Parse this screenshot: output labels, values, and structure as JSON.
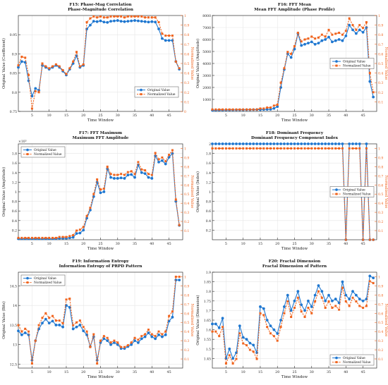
{
  "chart_data": [
    {
      "type": "line",
      "title": "F15: Phase-Mag Correlation",
      "subtitle": "Phase-Magnitude Correlation",
      "xlabel": "Time Window",
      "ylabel": "Original Value (Coefficient)",
      "y2label": "Normalized Value",
      "xlim": [
        1,
        49
      ],
      "ylim": [
        0.75,
        1.0
      ],
      "y2lim": [
        0,
        1
      ],
      "xticks": [
        5,
        10,
        15,
        20,
        25,
        30,
        35,
        40,
        45
      ],
      "yticks": [
        0.75,
        0.8,
        0.85,
        0.9,
        0.95
      ],
      "ytick_labels": [
        "0.75",
        "0.8",
        "0.85",
        "0.9",
        "0.95"
      ],
      "y2ticks": [
        0,
        0.1,
        0.2,
        0.3,
        0.4,
        0.5,
        0.6,
        0.7,
        0.8,
        0.9,
        1
      ],
      "legend_position": "lower-right",
      "grid": true,
      "series": [
        {
          "name": "Original Value",
          "axis": "left",
          "values": [
            0.865,
            0.88,
            0.878,
            0.83,
            0.79,
            0.81,
            0.805,
            0.87,
            0.865,
            0.86,
            0.865,
            0.87,
            0.865,
            0.855,
            0.845,
            0.86,
            0.875,
            0.895,
            0.865,
            0.87,
            0.965,
            0.975,
            0.985,
            0.984,
            0.986,
            0.983,
            0.982,
            0.985,
            0.986,
            0.987,
            0.985,
            0.984,
            0.985,
            0.986,
            0.987,
            0.986,
            0.985,
            0.984,
            0.983,
            0.984,
            0.983,
            0.965,
            0.94,
            0.935,
            0.935,
            0.935,
            0.88,
            0.86
          ]
        },
        {
          "name": "Normalized Value",
          "axis": "right",
          "values": [
            0.48,
            0.57,
            0.56,
            0.38,
            0.03,
            0.21,
            0.2,
            0.5,
            0.47,
            0.45,
            0.47,
            0.49,
            0.47,
            0.43,
            0.39,
            0.45,
            0.52,
            0.62,
            0.47,
            0.49,
            0.93,
            0.97,
            0.99,
            0.98,
            0.99,
            0.98,
            0.98,
            0.99,
            0.99,
            0.99,
            0.99,
            0.98,
            0.99,
            0.99,
            0.99,
            0.99,
            0.99,
            0.98,
            0.98,
            0.98,
            0.98,
            0.93,
            0.81,
            0.79,
            0.79,
            0.79,
            0.52,
            0.45
          ]
        }
      ]
    },
    {
      "type": "line",
      "title": "F16: FFT Mean",
      "subtitle": "Mean FFT Amplitude (Phase Profile)",
      "xlabel": "Time Window",
      "ylabel": "Original Value (Amplitude)",
      "y2label": "Normalized Value",
      "xlim": [
        1,
        49
      ],
      "ylim": [
        0,
        8000
      ],
      "y2lim": [
        0,
        1
      ],
      "xticks": [
        5,
        10,
        15,
        20,
        25,
        30,
        35,
        40,
        45
      ],
      "yticks": [
        1000,
        2000,
        3000,
        4000,
        5000,
        6000,
        7000,
        8000
      ],
      "ytick_labels": [
        "1000",
        "2000",
        "3000",
        "4000",
        "5000",
        "6000",
        "7000",
        "8000"
      ],
      "y2ticks": [
        0.1,
        0.2,
        0.3,
        0.4,
        0.5,
        0.6,
        0.7,
        0.8,
        0.9,
        1
      ],
      "legend_position": "center-right",
      "grid": true,
      "series": [
        {
          "name": "Original Value",
          "axis": "left",
          "values": [
            90,
            100,
            110,
            110,
            115,
            120,
            125,
            130,
            130,
            135,
            140,
            140,
            145,
            150,
            150,
            160,
            170,
            180,
            250,
            400,
            2000,
            3500,
            4800,
            4500,
            5200,
            6500,
            5500,
            5600,
            5700,
            5800,
            5600,
            5700,
            5900,
            6000,
            6200,
            5800,
            5900,
            6000,
            5900,
            6300,
            7200,
            6800,
            6500,
            6800,
            6600,
            7000,
            2500,
            1200
          ]
        },
        {
          "name": "Normalized Value",
          "axis": "right",
          "values": [
            0.02,
            0.02,
            0.02,
            0.02,
            0.02,
            0.02,
            0.02,
            0.02,
            0.02,
            0.02,
            0.02,
            0.02,
            0.02,
            0.02,
            0.03,
            0.03,
            0.04,
            0.04,
            0.06,
            0.07,
            0.3,
            0.45,
            0.62,
            0.6,
            0.68,
            0.82,
            0.73,
            0.75,
            0.76,
            0.78,
            0.76,
            0.77,
            0.8,
            0.78,
            0.85,
            0.8,
            0.81,
            0.82,
            0.8,
            0.84,
            0.97,
            0.9,
            0.85,
            0.9,
            0.87,
            0.93,
            0.4,
            0.2
          ]
        }
      ]
    },
    {
      "type": "line",
      "title": "F17: FFT Maximum",
      "subtitle": "Maximum FFT Amplitude",
      "xlabel": "Time Window",
      "ylabel": "Original Value (Amplitude)",
      "y2label": "Normalized Value",
      "exponent_label": "×10⁵",
      "xlim": [
        1,
        49
      ],
      "ylim": [
        0,
        2.0
      ],
      "y2lim": [
        0,
        1.05
      ],
      "xticks": [
        5,
        10,
        15,
        20,
        25,
        30,
        35,
        40,
        45
      ],
      "yticks": [
        0.2,
        0.4,
        0.6,
        0.8,
        1.0,
        1.2,
        1.4,
        1.6,
        1.8
      ],
      "ytick_labels": [
        "0.2",
        "0.4",
        "0.6",
        "0.8",
        "1",
        "1.2",
        "1.4",
        "1.6",
        "1.8"
      ],
      "y2ticks": [
        0.1,
        0.2,
        0.3,
        0.4,
        0.5,
        0.6,
        0.7,
        0.8,
        0.9,
        1
      ],
      "legend_position": "top-left",
      "grid": true,
      "series": [
        {
          "name": "Original Value",
          "axis": "left",
          "values": [
            0.02,
            0.02,
            0.02,
            0.02,
            0.02,
            0.02,
            0.02,
            0.02,
            0.02,
            0.02,
            0.02,
            0.02,
            0.03,
            0.03,
            0.03,
            0.04,
            0.05,
            0.13,
            0.14,
            0.2,
            0.45,
            0.62,
            0.9,
            1.2,
            0.98,
            1.0,
            1.48,
            1.3,
            1.28,
            1.28,
            1.29,
            1.28,
            1.35,
            1.36,
            1.3,
            1.56,
            1.4,
            1.38,
            1.3,
            1.28,
            1.75,
            1.62,
            1.65,
            1.58,
            1.72,
            1.8,
            0.8,
            0.3
          ]
        },
        {
          "name": "Normalized Value",
          "axis": "right",
          "values": [
            0.02,
            0.02,
            0.02,
            0.02,
            0.02,
            0.02,
            0.02,
            0.02,
            0.02,
            0.02,
            0.02,
            0.02,
            0.03,
            0.03,
            0.03,
            0.04,
            0.05,
            0.1,
            0.11,
            0.14,
            0.26,
            0.35,
            0.5,
            0.66,
            0.55,
            0.56,
            0.8,
            0.72,
            0.71,
            0.71,
            0.72,
            0.71,
            0.74,
            0.75,
            0.72,
            0.85,
            0.77,
            0.76,
            0.72,
            0.71,
            0.95,
            0.88,
            0.9,
            0.86,
            0.93,
            0.98,
            0.44,
            0.16
          ]
        }
      ]
    },
    {
      "type": "line",
      "title": "F18: Dominant Frequency",
      "subtitle": "Dominant Frequency Component Index",
      "xlabel": "Time Window",
      "ylabel": "Original Value (Index)",
      "y2label": "Normalized Value",
      "xlim": [
        1,
        49
      ],
      "ylim": [
        0,
        2
      ],
      "y2lim": [
        0,
        1.05
      ],
      "xticks": [
        5,
        10,
        15,
        20,
        25,
        30,
        35,
        40,
        45
      ],
      "yticks": [
        0.2,
        0.4,
        0.6,
        0.8,
        1.0,
        1.2,
        1.4,
        1.6,
        1.8,
        2.0
      ],
      "ytick_labels": [
        "0.2",
        "0.4",
        "0.6",
        "0.8",
        "1",
        "1.2",
        "1.4",
        "1.6",
        "1.8",
        "2"
      ],
      "y2ticks": [
        0.1,
        0.2,
        0.3,
        0.4,
        0.5,
        0.6,
        0.7,
        0.8,
        0.9,
        1
      ],
      "legend_position": "center-right",
      "grid": true,
      "series": [
        {
          "name": "Original Value",
          "axis": "left",
          "values": [
            2,
            2,
            2,
            2,
            2,
            2,
            2,
            2,
            2,
            2,
            2,
            2,
            2,
            2,
            2,
            2,
            2,
            2,
            2,
            2,
            2,
            2,
            2,
            2,
            2,
            2,
            2,
            2,
            2,
            2,
            2,
            2,
            2,
            2,
            2,
            2,
            2,
            2,
            2,
            0,
            2,
            2,
            2,
            2,
            0,
            2,
            0,
            0
          ]
        },
        {
          "name": "Normalized Value",
          "axis": "right",
          "values": [
            1,
            1,
            1,
            1,
            1,
            1,
            1,
            1,
            1,
            1,
            1,
            1,
            1,
            1,
            1,
            1,
            1,
            1,
            1,
            1,
            1,
            1,
            1,
            1,
            1,
            1,
            1,
            1,
            1,
            1,
            1,
            1,
            1,
            1,
            1,
            1,
            1,
            1,
            1,
            0,
            1,
            1,
            1,
            1,
            0,
            1,
            0,
            0
          ]
        }
      ]
    },
    {
      "type": "line",
      "title": "F19: Information Entropy",
      "subtitle": "Information Entropy of PRPD Pattern",
      "xlabel": "Time Window",
      "ylabel": "Original Value (Bits)",
      "y2label": "Normalized Value",
      "xlim": [
        1,
        49
      ],
      "ylim": [
        12.4,
        14.85
      ],
      "y2lim": [
        0,
        1.05
      ],
      "xticks": [
        5,
        10,
        15,
        20,
        25,
        30,
        35,
        40,
        45
      ],
      "yticks": [
        12.5,
        13,
        13.5,
        14,
        14.5
      ],
      "ytick_labels": [
        "12.5",
        "13",
        "13.5",
        "14",
        "14.5"
      ],
      "y2ticks": [
        0.1,
        0.2,
        0.3,
        0.4,
        0.5,
        0.6,
        0.7,
        0.8,
        0.9,
        1
      ],
      "legend_position": "top-left",
      "grid": true,
      "series": [
        {
          "name": "Original Value",
          "axis": "left",
          "values": [
            13.35,
            13.25,
            13.3,
            13.25,
            12.6,
            13.1,
            13.4,
            13.55,
            13.65,
            13.55,
            13.6,
            13.5,
            13.5,
            13.45,
            14.0,
            13.95,
            13.4,
            13.45,
            13.5,
            13.35,
            13.25,
            12.95,
            13.2,
            12.6,
            13.05,
            13.15,
            13.1,
            13.0,
            13.05,
            13.0,
            12.9,
            12.9,
            12.95,
            13.0,
            13.1,
            13.05,
            13.15,
            13.2,
            13.3,
            13.2,
            13.15,
            13.25,
            13.2,
            13.25,
            13.6,
            13.7,
            14.65,
            14.65
          ]
        },
        {
          "name": "Normalized Value",
          "axis": "right",
          "values": [
            0.47,
            0.4,
            0.43,
            0.4,
            0.05,
            0.3,
            0.47,
            0.55,
            0.6,
            0.55,
            0.57,
            0.52,
            0.52,
            0.49,
            0.75,
            0.76,
            0.47,
            0.5,
            0.52,
            0.45,
            0.4,
            0.23,
            0.37,
            0.05,
            0.3,
            0.35,
            0.33,
            0.28,
            0.3,
            0.28,
            0.23,
            0.23,
            0.25,
            0.28,
            0.33,
            0.31,
            0.35,
            0.37,
            0.42,
            0.37,
            0.35,
            0.4,
            0.37,
            0.4,
            0.57,
            0.62,
            1.0,
            1.0
          ]
        }
      ]
    },
    {
      "type": "line",
      "title": "F20: Fractal Dimension",
      "subtitle": "Fractal Dimension of Pattern",
      "xlabel": "Time Window",
      "ylabel": "Original Value (Dimension)",
      "y2label": "Normalized Value",
      "xlim": [
        1,
        49
      ],
      "ylim": [
        1.4,
        1.9
      ],
      "y2lim": [
        0,
        1.05
      ],
      "xticks": [
        5,
        10,
        15,
        20,
        25,
        30,
        35,
        40,
        45
      ],
      "yticks": [
        1.45,
        1.5,
        1.55,
        1.6,
        1.65,
        1.7,
        1.75,
        1.8,
        1.85,
        1.9
      ],
      "ytick_labels": [
        "1.45",
        "1.5",
        "1.55",
        "1.6",
        "1.65",
        "1.7",
        "1.75",
        "1.8",
        "1.85",
        "1.9"
      ],
      "y2ticks": [
        0.1,
        0.2,
        0.3,
        0.4,
        0.5,
        0.6,
        0.7,
        0.8,
        0.9,
        1
      ],
      "legend_position": "bottom-right",
      "grid": true,
      "series": [
        {
          "name": "Original Value",
          "axis": "left",
          "values": [
            1.63,
            1.63,
            1.61,
            1.66,
            1.45,
            1.5,
            1.45,
            1.48,
            1.62,
            1.56,
            1.55,
            1.53,
            1.52,
            1.48,
            1.72,
            1.71,
            1.65,
            1.62,
            1.6,
            1.58,
            1.65,
            1.72,
            1.78,
            1.7,
            1.75,
            1.8,
            1.73,
            1.7,
            1.75,
            1.72,
            1.78,
            1.83,
            1.8,
            1.75,
            1.78,
            1.75,
            1.76,
            1.74,
            1.85,
            1.78,
            1.76,
            1.8,
            1.78,
            1.76,
            1.75,
            1.76,
            1.88,
            1.87
          ]
        },
        {
          "name": "Normalized Value",
          "axis": "right",
          "values": [
            0.4,
            0.4,
            0.35,
            0.45,
            0.05,
            0.14,
            0.05,
            0.1,
            0.38,
            0.27,
            0.25,
            0.2,
            0.18,
            0.1,
            0.6,
            0.58,
            0.45,
            0.38,
            0.35,
            0.3,
            0.45,
            0.6,
            0.73,
            0.56,
            0.66,
            0.77,
            0.62,
            0.56,
            0.66,
            0.6,
            0.73,
            0.84,
            0.77,
            0.66,
            0.73,
            0.66,
            0.68,
            0.64,
            0.88,
            0.73,
            0.68,
            0.77,
            0.73,
            0.68,
            0.66,
            0.68,
            0.95,
            0.93
          ]
        }
      ]
    }
  ]
}
